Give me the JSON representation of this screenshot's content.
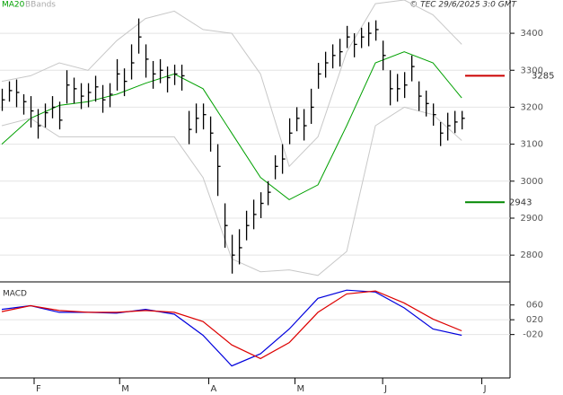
{
  "chart_data": [
    {
      "type": "ohlc",
      "legend_ma": "MA20",
      "copyright": "© TEC 29/6/2025 3:0 GMT",
      "xlim": [
        -0.25,
        70.6
      ],
      "ylim": [
        2730,
        3490
      ],
      "yticks": [
        2800,
        2900,
        3000,
        3100,
        3200,
        3300,
        3400
      ],
      "grid": true,
      "bars": {
        "color": "#000000",
        "high": [
          3250,
          3270,
          3275,
          3235,
          3230,
          3195,
          3210,
          3230,
          3215,
          3300,
          3280,
          3265,
          3265,
          3285,
          3260,
          3265,
          3330,
          3305,
          3370,
          3440,
          3370,
          3325,
          3330,
          3310,
          3315,
          3315,
          3190,
          3210,
          3210,
          3175,
          3100,
          2940,
          2855,
          2870,
          2920,
          2950,
          2970,
          3000,
          3070,
          3100,
          3170,
          3200,
          3195,
          3250,
          3320,
          3350,
          3370,
          3385,
          3420,
          3400,
          3415,
          3430,
          3435,
          3380,
          3300,
          3290,
          3295,
          3340,
          3270,
          3245,
          3210,
          3160,
          3185,
          3190,
          3190
        ],
        "low": [
          3190,
          3215,
          3200,
          3180,
          3145,
          3115,
          3145,
          3170,
          3140,
          3210,
          3210,
          3195,
          3200,
          3215,
          3185,
          3200,
          3245,
          3230,
          3275,
          3345,
          3280,
          3250,
          3265,
          3240,
          3260,
          3245,
          3100,
          3130,
          3140,
          3080,
          2960,
          2820,
          2750,
          2775,
          2840,
          2870,
          2900,
          2935,
          3005,
          3020,
          3100,
          3135,
          3110,
          3155,
          3250,
          3280,
          3305,
          3310,
          3360,
          3335,
          3360,
          3365,
          3380,
          3300,
          3205,
          3215,
          3225,
          3270,
          3190,
          3175,
          3150,
          3095,
          3110,
          3130,
          3140
        ],
        "close": [
          3220,
          3245,
          3240,
          3215,
          3190,
          3150,
          3185,
          3200,
          3165,
          3260,
          3250,
          3230,
          3240,
          3255,
          3220,
          3235,
          3290,
          3270,
          3320,
          3390,
          3330,
          3290,
          3300,
          3280,
          3290,
          3285,
          3140,
          3170,
          3180,
          3130,
          3040,
          2880,
          2800,
          2820,
          2880,
          2910,
          2940,
          2970,
          3040,
          3060,
          3130,
          3170,
          3150,
          3200,
          3290,
          3320,
          3340,
          3350,
          3390,
          3370,
          3390,
          3400,
          3410,
          3340,
          3250,
          3250,
          3260,
          3310,
          3230,
          3210,
          3180,
          3130,
          3150,
          3160,
          3170
        ]
      },
      "series": [
        {
          "name": "MA20",
          "color": "#00a000",
          "x": [
            0,
            4,
            8,
            12,
            16,
            20,
            24,
            28,
            32,
            36,
            40,
            44,
            48,
            52,
            56,
            60,
            64
          ],
          "values": [
            3100,
            3170,
            3205,
            3215,
            3235,
            3265,
            3290,
            3250,
            3130,
            3010,
            2950,
            2990,
            3150,
            3320,
            3350,
            3320,
            3225
          ]
        },
        {
          "name": "BBands",
          "color": "#c8c8c8",
          "x": [
            0,
            4,
            8,
            12,
            16,
            20,
            24,
            28,
            32,
            36,
            40,
            44,
            48,
            52,
            56,
            60,
            64
          ],
          "upper": [
            3270,
            3285,
            3320,
            3300,
            3380,
            3440,
            3460,
            3410,
            3400,
            3290,
            3040,
            3120,
            3350,
            3480,
            3490,
            3450,
            3370
          ],
          "lower": [
            3150,
            3170,
            3120,
            3120,
            3120,
            3120,
            3120,
            3010,
            2790,
            2755,
            2760,
            2745,
            2810,
            3150,
            3200,
            3180,
            3110
          ]
        }
      ],
      "levels": [
        {
          "value": 3285,
          "color": "#cc0000"
        },
        {
          "value": 2943,
          "color": "#008800"
        }
      ]
    },
    {
      "type": "line",
      "title": "MACD",
      "xlim": [
        -0.25,
        70.6
      ],
      "ylim": [
        -1.35,
        1.2
      ],
      "yticks": [
        {
          "value": 0.6,
          "label": "060"
        },
        {
          "value": 0.2,
          "label": "020"
        },
        {
          "value": -0.2,
          "label": "-020"
        }
      ],
      "xticks": [
        {
          "value": 4.5,
          "label": "F"
        },
        {
          "value": 16.4,
          "label": "M"
        },
        {
          "value": 28.8,
          "label": "A"
        },
        {
          "value": 40.8,
          "label": "M"
        },
        {
          "value": 53,
          "label": "J"
        },
        {
          "value": 66.8,
          "label": "J"
        }
      ],
      "x": [
        0,
        4,
        8,
        12,
        16,
        20,
        24,
        28,
        32,
        36,
        40,
        44,
        48,
        52,
        56,
        60,
        64
      ],
      "series": [
        {
          "color": "#0000dd",
          "values": [
            0.48,
            0.58,
            0.4,
            0.4,
            0.38,
            0.48,
            0.35,
            -0.22,
            -1.05,
            -0.72,
            -0.05,
            0.78,
            1.0,
            0.95,
            0.52,
            -0.05,
            -0.22
          ]
        },
        {
          "color": "#dd0000",
          "values": [
            0.42,
            0.58,
            0.45,
            0.4,
            0.4,
            0.45,
            0.4,
            0.15,
            -0.48,
            -0.85,
            -0.42,
            0.4,
            0.9,
            0.98,
            0.65,
            0.22,
            -0.1
          ]
        }
      ]
    }
  ]
}
